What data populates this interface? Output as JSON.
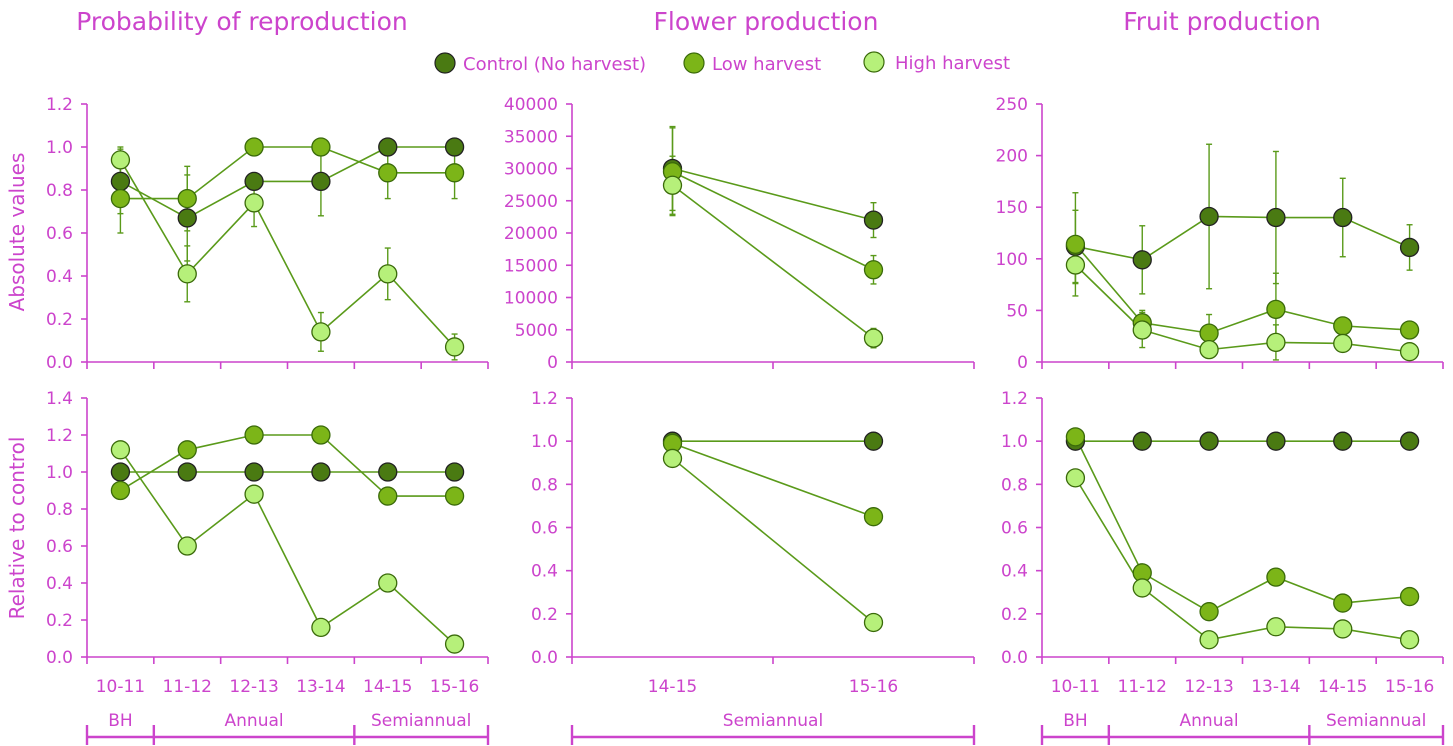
{
  "colors": {
    "text": "#cc44cc",
    "axis": "#cc44cc",
    "line": "#5a9a1a",
    "control": "#4a7a12",
    "low": "#7cb518",
    "high": "#b6f07a",
    "marker_edge": "#3a6a0a",
    "control_edge": "#222222"
  },
  "legend": {
    "placement": "top-center",
    "items": [
      {
        "label": "Control (No harvest)",
        "color_key": "control"
      },
      {
        "label": "Low harvest",
        "color_key": "low"
      },
      {
        "label": "High harvest",
        "color_key": "high"
      }
    ]
  },
  "panel_titles": [
    "Probability of reproduction",
    "Flower production",
    "Fruit production"
  ],
  "row_labels": [
    "Absolute values",
    "Relative to control"
  ],
  "period_bands": [
    {
      "groups": [
        {
          "label": "BH",
          "span": [
            0,
            1
          ]
        },
        {
          "label": "Annual",
          "span": [
            1,
            4
          ]
        },
        {
          "label": "Semiannual",
          "span": [
            4,
            6
          ]
        }
      ]
    },
    {
      "groups": [
        {
          "label": "Semiannual",
          "span": [
            0,
            2
          ]
        }
      ]
    },
    {
      "groups": [
        {
          "label": "BH",
          "span": [
            0,
            1
          ]
        },
        {
          "label": "Annual",
          "span": [
            1,
            4
          ]
        },
        {
          "label": "Semiannual",
          "span": [
            4,
            6
          ]
        }
      ]
    }
  ],
  "chart_data": [
    {
      "id": "prob-abs",
      "type": "line",
      "row": 0,
      "col": 0,
      "categories": [
        "10-11",
        "11-12",
        "12-13",
        "13-14",
        "14-15",
        "15-16"
      ],
      "ylim": [
        0,
        1.2
      ],
      "yticks": [
        "0.0",
        "0.2",
        "0.4",
        "0.6",
        "0.8",
        "1.0",
        "1.2"
      ],
      "ystep": 0.2,
      "series": [
        {
          "name": "Control (No harvest)",
          "color_key": "control",
          "values": [
            0.84,
            0.67,
            0.84,
            0.84,
            1.0,
            1.0
          ],
          "err": [
            0.15,
            0.2,
            0.0,
            0.16,
            0.0,
            0.0
          ]
        },
        {
          "name": "Low harvest",
          "color_key": "low",
          "values": [
            0.76,
            0.76,
            1.0,
            1.0,
            0.88,
            0.88
          ],
          "err": [
            0.16,
            0.15,
            0.0,
            0.0,
            0.12,
            0.12
          ]
        },
        {
          "name": "High harvest",
          "color_key": "high",
          "values": [
            0.94,
            0.41,
            0.74,
            0.14,
            0.41,
            0.07
          ],
          "err": [
            0.06,
            0.13,
            0.11,
            0.09,
            0.12,
            0.06
          ]
        }
      ]
    },
    {
      "id": "flower-abs",
      "type": "line",
      "row": 0,
      "col": 1,
      "categories": [
        "14-15",
        "15-16"
      ],
      "ylim": [
        0,
        40000
      ],
      "yticks": [
        "0",
        "5000",
        "10000",
        "15000",
        "20000",
        "25000",
        "30000",
        "35000",
        "40000"
      ],
      "ystep": 5000,
      "series": [
        {
          "name": "Control (No harvest)",
          "color_key": "control",
          "values": [
            30000,
            22000
          ],
          "err": [
            6500,
            2700
          ]
        },
        {
          "name": "Low harvest",
          "color_key": "low",
          "values": [
            29500,
            14300
          ],
          "err": [
            6800,
            2200
          ]
        },
        {
          "name": "High harvest",
          "color_key": "high",
          "values": [
            27400,
            3700
          ],
          "err": [
            4500,
            1500
          ]
        }
      ]
    },
    {
      "id": "fruit-abs",
      "type": "line",
      "row": 0,
      "col": 2,
      "categories": [
        "10-11",
        "11-12",
        "12-13",
        "13-14",
        "14-15",
        "15-16"
      ],
      "ylim": [
        0,
        250
      ],
      "yticks": [
        "0",
        "50",
        "100",
        "150",
        "200",
        "250"
      ],
      "ystep": 50,
      "series": [
        {
          "name": "Control (No harvest)",
          "color_key": "control",
          "values": [
            112,
            99,
            141,
            140,
            140,
            111
          ],
          "err": [
            35,
            33,
            70,
            64,
            38,
            22
          ]
        },
        {
          "name": "Low harvest",
          "color_key": "low",
          "values": [
            114,
            38,
            28,
            51,
            35,
            31
          ],
          "err": [
            50,
            12,
            18,
            35,
            8,
            6
          ]
        },
        {
          "name": "High harvest",
          "color_key": "high",
          "values": [
            94,
            31,
            12,
            19,
            18,
            10
          ],
          "err": [
            18,
            17,
            8,
            17,
            5,
            4
          ]
        }
      ]
    },
    {
      "id": "prob-rel",
      "type": "line",
      "row": 1,
      "col": 0,
      "categories": [
        "10-11",
        "11-12",
        "12-13",
        "13-14",
        "14-15",
        "15-16"
      ],
      "ylim": [
        0,
        1.4
      ],
      "yticks": [
        "0.0",
        "0.2",
        "0.4",
        "0.6",
        "0.8",
        "1.0",
        "1.2",
        "1.4"
      ],
      "ystep": 0.2,
      "series": [
        {
          "name": "Control (No harvest)",
          "color_key": "control",
          "values": [
            1.0,
            1.0,
            1.0,
            1.0,
            1.0,
            1.0
          ]
        },
        {
          "name": "Low harvest",
          "color_key": "low",
          "values": [
            0.9,
            1.12,
            1.2,
            1.2,
            0.87,
            0.87
          ]
        },
        {
          "name": "High harvest",
          "color_key": "high",
          "values": [
            1.12,
            0.6,
            0.88,
            0.16,
            0.4,
            0.07
          ]
        }
      ]
    },
    {
      "id": "flower-rel",
      "type": "line",
      "row": 1,
      "col": 1,
      "categories": [
        "14-15",
        "15-16"
      ],
      "ylim": [
        0,
        1.2
      ],
      "yticks": [
        "0.0",
        "0.2",
        "0.4",
        "0.6",
        "0.8",
        "1.0",
        "1.2"
      ],
      "ystep": 0.2,
      "series": [
        {
          "name": "Control (No harvest)",
          "color_key": "control",
          "values": [
            1.0,
            1.0
          ]
        },
        {
          "name": "Low harvest",
          "color_key": "low",
          "values": [
            0.99,
            0.65
          ]
        },
        {
          "name": "High harvest",
          "color_key": "high",
          "values": [
            0.92,
            0.16
          ]
        }
      ]
    },
    {
      "id": "fruit-rel",
      "type": "line",
      "row": 1,
      "col": 2,
      "categories": [
        "10-11",
        "11-12",
        "12-13",
        "13-14",
        "14-15",
        "15-16"
      ],
      "ylim": [
        0,
        1.2
      ],
      "yticks": [
        "0.0",
        "0.2",
        "0.4",
        "0.6",
        "0.8",
        "1.0",
        "1.2"
      ],
      "ystep": 0.2,
      "series": [
        {
          "name": "Control (No harvest)",
          "color_key": "control",
          "values": [
            1.0,
            1.0,
            1.0,
            1.0,
            1.0,
            1.0
          ]
        },
        {
          "name": "Low harvest",
          "color_key": "low",
          "values": [
            1.02,
            0.39,
            0.21,
            0.37,
            0.25,
            0.28
          ]
        },
        {
          "name": "High harvest",
          "color_key": "high",
          "values": [
            0.83,
            0.32,
            0.08,
            0.14,
            0.13,
            0.08
          ]
        }
      ]
    }
  ]
}
